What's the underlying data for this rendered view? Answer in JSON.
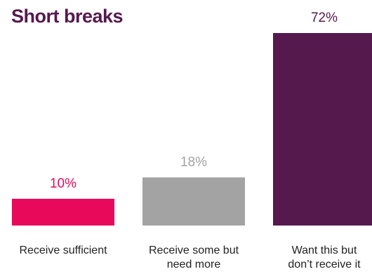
{
  "chart_data": {
    "type": "bar",
    "title": "Short breaks",
    "categories": [
      [
        "Receive sufficient"
      ],
      [
        "Receive some but",
        "need more"
      ],
      [
        "Want this but",
        "don’t receive it"
      ]
    ],
    "values": [
      10,
      18,
      72
    ],
    "value_labels": [
      "10%",
      "18%",
      "72%"
    ],
    "ylim": [
      0,
      72
    ],
    "grid": false,
    "legend": "none",
    "colors": {
      "bars": [
        "#e8095a",
        "#a3a3a3",
        "#56194e"
      ],
      "value_labels": [
        "#e8095a",
        "#a3a3a3",
        "#56194e"
      ],
      "title": "#56194e",
      "category_text": "#222222"
    }
  }
}
